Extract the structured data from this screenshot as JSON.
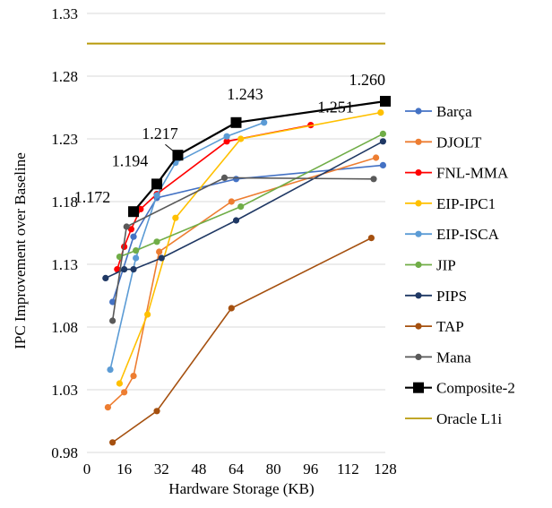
{
  "chart_data": {
    "type": "line",
    "xlabel": "Hardware Storage (KB)",
    "ylabel": "IPC Improvement over Baseline",
    "xlim": [
      0,
      128
    ],
    "ylim": [
      0.98,
      1.33
    ],
    "x_ticks": [
      "0",
      "16",
      "32",
      "48",
      "64",
      "80",
      "96",
      "112",
      "128"
    ],
    "y_ticks": [
      "0.98",
      "1.03",
      "1.08",
      "1.13",
      "1.18",
      "1.23",
      "1.28",
      "1.33"
    ],
    "x_tick_values": [
      0,
      16,
      32,
      48,
      64,
      80,
      96,
      112,
      128
    ],
    "y_tick_values": [
      0.98,
      1.03,
      1.08,
      1.13,
      1.18,
      1.23,
      1.28,
      1.33
    ],
    "grid": "horizontal",
    "legend_position": "right",
    "series": [
      {
        "name": "Barça",
        "color": "#4472C4",
        "marker": "circle",
        "points": [
          [
            11,
            1.1
          ],
          [
            20,
            1.152
          ],
          [
            30,
            1.183
          ],
          [
            64,
            1.198
          ],
          [
            127,
            1.209
          ]
        ]
      },
      {
        "name": "DJOLT",
        "color": "#ED7D31",
        "marker": "circle",
        "points": [
          [
            9,
            1.016
          ],
          [
            16,
            1.028
          ],
          [
            20,
            1.041
          ],
          [
            31,
            1.14
          ],
          [
            62,
            1.18
          ],
          [
            124,
            1.215
          ]
        ]
      },
      {
        "name": "FNL-MMA",
        "color": "#FF0000",
        "marker": "circle",
        "points": [
          [
            13,
            1.126
          ],
          [
            16,
            1.144
          ],
          [
            19,
            1.158
          ],
          [
            23,
            1.174
          ],
          [
            30,
            1.186
          ],
          [
            60,
            1.228
          ],
          [
            96,
            1.241
          ]
        ]
      },
      {
        "name": "EIP-IPC1",
        "color": "#FFC000",
        "marker": "circle",
        "points": [
          [
            14,
            1.035
          ],
          [
            26,
            1.09
          ],
          [
            38,
            1.167
          ],
          [
            66,
            1.23
          ],
          [
            126,
            1.251
          ]
        ]
      },
      {
        "name": "EIP-ISCA",
        "color": "#5B9BD5",
        "marker": "circle",
        "points": [
          [
            10,
            1.046
          ],
          [
            21,
            1.135
          ],
          [
            30,
            1.185
          ],
          [
            38,
            1.211
          ],
          [
            60,
            1.232
          ],
          [
            76,
            1.243
          ]
        ]
      },
      {
        "name": "JIP",
        "color": "#70AD47",
        "marker": "circle",
        "points": [
          [
            14,
            1.136
          ],
          [
            21,
            1.141
          ],
          [
            30,
            1.148
          ],
          [
            66,
            1.176
          ],
          [
            127,
            1.234
          ]
        ]
      },
      {
        "name": "PIPS",
        "color": "#1F3864",
        "marker": "circle",
        "points": [
          [
            8,
            1.119
          ],
          [
            16,
            1.126
          ],
          [
            20,
            1.126
          ],
          [
            32,
            1.135
          ],
          [
            64,
            1.165
          ],
          [
            127,
            1.228
          ]
        ]
      },
      {
        "name": "TAP",
        "color": "#A5500F",
        "marker": "circle",
        "points": [
          [
            11,
            0.988
          ],
          [
            30,
            1.013
          ],
          [
            62,
            1.095
          ],
          [
            122,
            1.151
          ]
        ]
      },
      {
        "name": "Mana",
        "color": "#595959",
        "marker": "circle",
        "points": [
          [
            11,
            1.085
          ],
          [
            17,
            1.16
          ],
          [
            59,
            1.199
          ],
          [
            123,
            1.198
          ]
        ]
      },
      {
        "name": "Composite-2",
        "color": "#000000",
        "marker": "square",
        "points": [
          [
            20,
            1.172
          ],
          [
            30,
            1.194
          ],
          [
            39,
            1.217
          ],
          [
            64,
            1.243
          ],
          [
            128,
            1.26
          ]
        ]
      },
      {
        "name": "Oracle L1i",
        "color": "#B89A0A",
        "marker": "none",
        "points": [
          [
            0,
            1.306
          ],
          [
            128,
            1.306
          ]
        ]
      }
    ],
    "annotations": [
      {
        "text": "1.172",
        "x": 20,
        "y": 1.172
      },
      {
        "text": "1.194",
        "x": 30,
        "y": 1.194
      },
      {
        "text": "1.217",
        "x": 39,
        "y": 1.217
      },
      {
        "text": "1.243",
        "x": 64,
        "y": 1.243
      },
      {
        "text": "1.260",
        "x": 128,
        "y": 1.26
      },
      {
        "text": "1.251",
        "x": 126,
        "y": 1.251
      }
    ]
  }
}
